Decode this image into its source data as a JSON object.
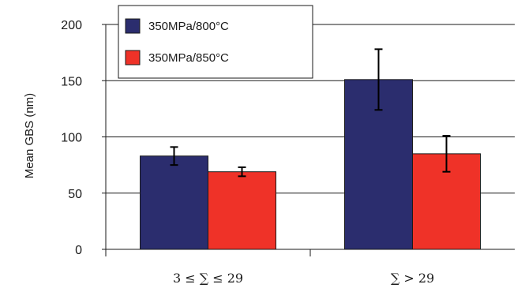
{
  "chart_data": {
    "type": "bar",
    "title": "",
    "ylabel": "Mean GBS (nm)",
    "xlabel": "",
    "ylim": [
      0,
      200
    ],
    "yticks": [
      0,
      50,
      100,
      150,
      200
    ],
    "grid": true,
    "legend_position": "top-left",
    "categories": [
      "3 ≤ ∑ ≤ 29",
      "∑ > 29"
    ],
    "series": [
      {
        "name": "350MPa/800°C",
        "color": "#2b2d6e",
        "values": [
          83,
          151
        ],
        "error": [
          8,
          27
        ]
      },
      {
        "name": "350MPa/850°C",
        "color": "#ef3228",
        "values": [
          69,
          85
        ],
        "error": [
          4,
          16
        ]
      }
    ]
  }
}
